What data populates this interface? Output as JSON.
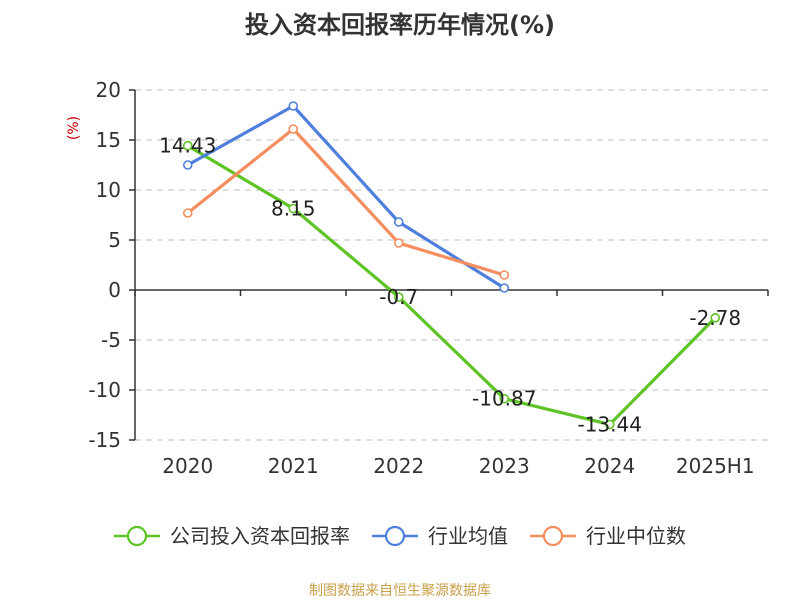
{
  "chart_data": {
    "type": "line",
    "title": "投入资本回报率历年情况(%)",
    "ylabel": "(%)",
    "xlabel": "",
    "categories": [
      "2020",
      "2021",
      "2022",
      "2023",
      "2024",
      "2025H1"
    ],
    "ylim": [
      -15,
      20
    ],
    "yticks": [
      20,
      15,
      10,
      5,
      0,
      -5,
      -10,
      -15
    ],
    "ytick_labels": [
      "20",
      "15",
      "10",
      "5",
      "0",
      "-5",
      "-10",
      "-15"
    ],
    "grid": true,
    "legend_position": "bottom",
    "series": [
      {
        "name": "公司投入资本回报率",
        "color": "#5ec324",
        "values": [
          14.43,
          8.15,
          -0.7,
          -10.87,
          -13.44,
          -2.78
        ],
        "labels": [
          "14.43",
          "8.15",
          "-0.7",
          "-10.87",
          "-13.44",
          "-2.78"
        ]
      },
      {
        "name": "行业均值",
        "color": "#4f7fdc",
        "values": [
          12.5,
          18.4,
          6.8,
          0.2,
          null,
          null
        ]
      },
      {
        "name": "行业中位数",
        "color": "#f58d5e",
        "values": [
          7.7,
          16.1,
          4.7,
          1.5,
          null,
          null
        ]
      }
    ],
    "source": "制图数据来自恒生聚源数据库",
    "colors": {
      "unit_label": "#cc0000",
      "source": "#c8a04a",
      "axis": "#333333",
      "grid": "#cccccc"
    }
  }
}
